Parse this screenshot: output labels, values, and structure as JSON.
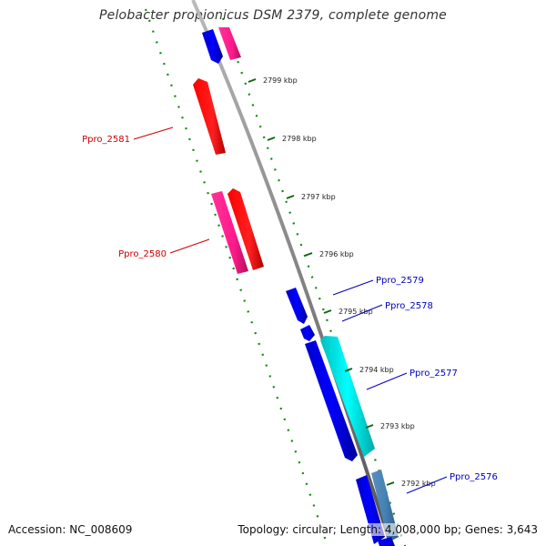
{
  "title": "Pelobacter propionicus DSM 2379, complete genome",
  "accession": "Accession: NC_008609",
  "topology": "Topology: circular; Length: 4,008,000 bp; Genes: 3,643",
  "ticks": [
    "2799 kbp",
    "2798 kbp",
    "2797 kbp",
    "2796 kbp",
    "2795 kbp",
    "2794 kbp",
    "2793 kbp",
    "2792 kbp"
  ],
  "gene_labels": [
    {
      "text": "Ppro_2581",
      "color": "#cc0000"
    },
    {
      "text": "Ppro_2580",
      "color": "#cc0000"
    },
    {
      "text": "Ppro_2579",
      "color": "#0000bb"
    },
    {
      "text": "Ppro_2578",
      "color": "#0000bb"
    },
    {
      "text": "Ppro_2577",
      "color": "#0000bb"
    },
    {
      "text": "Ppro_2576",
      "color": "#0000bb"
    }
  ],
  "colors": {
    "backbone": "#8c8c8c",
    "dots": "#118811",
    "forward_cds": "#ff0000",
    "forward_other": "#ff2299",
    "reverse_cds": "#0000ee",
    "reverse_other": "#00eeee",
    "reverse_other_2": "#4682b4"
  }
}
